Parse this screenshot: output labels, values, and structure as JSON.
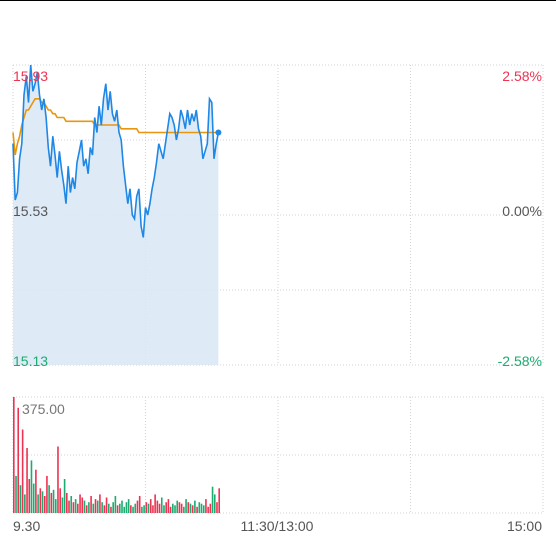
{
  "chart_data": [
    {
      "type": "line",
      "title": "",
      "y_left_labels": [
        "15.93",
        "15.53",
        "15.13"
      ],
      "y_right_labels": [
        "2.58%",
        "0.00%",
        "-2.58%"
      ],
      "ylim": [
        15.13,
        15.93
      ],
      "base_price": 15.53,
      "x_labels": [
        "9.30",
        "11:30/13:00",
        "15:00"
      ],
      "total_minutes": 240,
      "colors": {
        "price": "#1f87e5",
        "average": "#e8950f",
        "up": "#ee3352",
        "down": "#1dab71",
        "neutral": "#555555",
        "area": "#d8e7f6"
      },
      "series": [
        {
          "name": "price",
          "values": [
            15.72,
            15.57,
            15.59,
            15.68,
            15.72,
            15.85,
            15.9,
            15.83,
            15.93,
            15.86,
            15.88,
            15.91,
            15.85,
            15.81,
            15.84,
            15.79,
            15.71,
            15.66,
            15.74,
            15.69,
            15.63,
            15.7,
            15.65,
            15.61,
            15.56,
            15.66,
            15.59,
            15.63,
            15.6,
            15.67,
            15.7,
            15.73,
            15.66,
            15.68,
            15.64,
            15.71,
            15.69,
            15.79,
            15.75,
            15.82,
            15.77,
            15.84,
            15.88,
            15.81,
            15.86,
            15.8,
            15.78,
            15.81,
            15.75,
            15.73,
            15.66,
            15.61,
            15.56,
            15.6,
            15.53,
            15.52,
            15.58,
            15.6,
            15.5,
            15.47,
            15.55,
            15.53,
            15.56,
            15.6,
            15.63,
            15.67,
            15.72,
            15.7,
            15.68,
            15.72,
            15.76,
            15.8,
            15.79,
            15.77,
            15.73,
            15.76,
            15.81,
            15.79,
            15.76,
            15.81,
            15.77,
            15.8,
            15.78,
            15.81,
            15.76,
            15.74,
            15.68,
            15.7,
            15.72,
            15.84,
            15.83,
            15.68,
            15.72,
            15.75
          ]
        },
        {
          "name": "average",
          "values": [
            15.75,
            15.69,
            15.72,
            15.74,
            15.77,
            15.79,
            15.81,
            15.81,
            15.82,
            15.83,
            15.84,
            15.84,
            15.84,
            15.83,
            15.83,
            15.82,
            15.81,
            15.81,
            15.8,
            15.8,
            15.79,
            15.79,
            15.79,
            15.79,
            15.78,
            15.78,
            15.78,
            15.78,
            15.78,
            15.78,
            15.78,
            15.78,
            15.78,
            15.78,
            15.78,
            15.78,
            15.78,
            15.77,
            15.77,
            15.77,
            15.77,
            15.77,
            15.77,
            15.77,
            15.77,
            15.77,
            15.77,
            15.77,
            15.77,
            15.76,
            15.76,
            15.76,
            15.76,
            15.76,
            15.76,
            15.76,
            15.76,
            15.75,
            15.75,
            15.75,
            15.75,
            15.75,
            15.75,
            15.75,
            15.75,
            15.75,
            15.75,
            15.75,
            15.75,
            15.75,
            15.75,
            15.75,
            15.75,
            15.75,
            15.75,
            15.75,
            15.75,
            15.75,
            15.75,
            15.75,
            15.75,
            15.75,
            15.75,
            15.75,
            15.75,
            15.75,
            15.75,
            15.75,
            15.75,
            15.75,
            15.75,
            15.75,
            15.75,
            15.75
          ]
        }
      ]
    },
    {
      "type": "bar",
      "title": "",
      "max_label": "375.00",
      "ylim": [
        0,
        375
      ],
      "values": [
        375,
        120,
        340,
        90,
        270,
        60,
        210,
        110,
        170,
        95,
        140,
        60,
        80,
        70,
        55,
        120,
        90,
        65,
        75,
        45,
        215,
        80,
        50,
        110,
        65,
        40,
        55,
        35,
        45,
        30,
        60,
        50,
        40,
        25,
        35,
        55,
        30,
        45,
        40,
        60,
        35,
        25,
        50,
        30,
        20,
        35,
        55,
        25,
        30,
        40,
        20,
        35,
        45,
        25,
        20,
        30,
        40,
        55,
        20,
        25,
        35,
        30,
        45,
        25,
        60,
        40,
        30,
        50,
        25,
        35,
        45,
        20,
        30,
        25,
        40,
        35,
        30,
        20,
        45,
        35,
        30,
        25,
        40,
        20,
        35,
        30,
        25,
        45,
        20,
        30,
        85,
        60,
        35,
        80
      ],
      "directions": [
        "up",
        "down",
        "up",
        "down",
        "up",
        "down",
        "up",
        "up",
        "down",
        "down",
        "up",
        "down",
        "up",
        "down",
        "up",
        "up",
        "down",
        "up",
        "down",
        "down",
        "up",
        "up",
        "down",
        "down",
        "up",
        "up",
        "down",
        "up",
        "down",
        "up",
        "up",
        "up",
        "down",
        "up",
        "down",
        "up",
        "down",
        "up",
        "down",
        "up",
        "down",
        "up",
        "up",
        "down",
        "up",
        "down",
        "down",
        "up",
        "down",
        "down",
        "down",
        "down",
        "down",
        "up",
        "down",
        "down",
        "up",
        "up",
        "down",
        "down",
        "up",
        "down",
        "up",
        "up",
        "up",
        "up",
        "up",
        "down",
        "down",
        "up",
        "up",
        "up",
        "down",
        "down",
        "down",
        "up",
        "up",
        "down",
        "down",
        "up",
        "down",
        "up",
        "down",
        "up",
        "down",
        "down",
        "down",
        "up",
        "up",
        "up",
        "down",
        "down",
        "up",
        "up"
      ]
    }
  ]
}
